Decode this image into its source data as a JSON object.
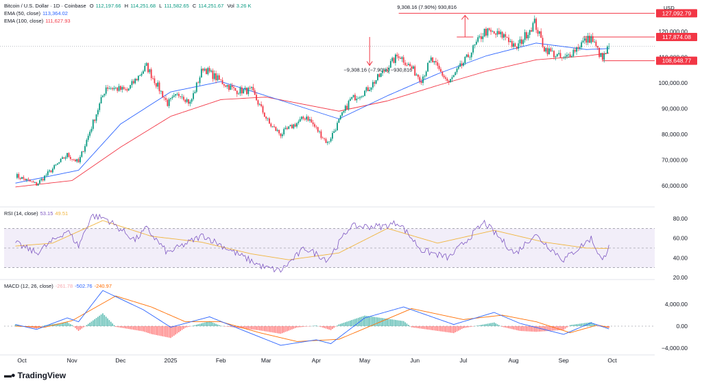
{
  "header": {
    "symbol": "Bitcoin / U.S. Dollar · 1D · Coinbase",
    "o_label": "O",
    "o_val": "112,197.66",
    "h_label": "H",
    "h_val": "114,251.68",
    "l_label": "L",
    "l_val": "111,582.65",
    "c_label": "C",
    "c_val": "114,251.67",
    "vol_label": "Vol",
    "vol_val": "3.26 K",
    "ema50_label": "EMA (50, close)",
    "ema50_val": "113,364.02",
    "ema100_label": "EMA (100, close)",
    "ema100_val": "111,627.93",
    "rsi_label": "RSI (14, close)",
    "rsi_val": "53.15",
    "rsi_ma_val": "49.51",
    "macd_label": "MACD (12, 26, close)",
    "macd_hist_val": "-261.78",
    "macd_val": "-502.76",
    "macd_signal_val": "-240.97",
    "currency": "USD"
  },
  "branding": {
    "name": "TradingView"
  },
  "colors": {
    "up": "#089981",
    "down": "#f23645",
    "ema50": "#2962ff",
    "ema100": "#f23645",
    "rsi": "#7e57c2",
    "rsi_ma": "#f0b43c",
    "macd": "#2962ff",
    "signal": "#ff6d00"
  },
  "annotations": {
    "measure_top": "9,308.16 (7.90%) 930,816",
    "measure_mid": "−9,308.16 (−7.90%) −930,816",
    "level_high": "127,092.79",
    "level_res": "117,874.08",
    "level_sup": "108,648.77"
  },
  "chart_data": [
    {
      "type": "candlestick",
      "title": "Bitcoin / U.S. Dollar · 1D · Coinbase",
      "ylabel": "USD",
      "x_ticks": [
        "Oct",
        "Nov",
        "Dec",
        "2025",
        "Feb",
        "Mar",
        "Apr",
        "May",
        "Jun",
        "Jul",
        "Aug",
        "Sep",
        "Oct"
      ],
      "y_ticks": [
        60000,
        70000,
        80000,
        90000,
        100000,
        110000,
        120000
      ],
      "ylim": [
        55000,
        128000
      ],
      "price_keypoints": [
        {
          "date": "2024-09-27",
          "price": 64000
        },
        {
          "date": "2024-10-10",
          "price": 60500
        },
        {
          "date": "2024-10-29",
          "price": 72000
        },
        {
          "date": "2024-11-05",
          "price": 69000
        },
        {
          "date": "2024-11-22",
          "price": 98500
        },
        {
          "date": "2024-12-05",
          "price": 97000
        },
        {
          "date": "2024-12-17",
          "price": 106500
        },
        {
          "date": "2024-12-30",
          "price": 92000
        },
        {
          "date": "2025-01-07",
          "price": 96000
        },
        {
          "date": "2025-01-13",
          "price": 92000
        },
        {
          "date": "2025-01-21",
          "price": 106000
        },
        {
          "date": "2025-01-31",
          "price": 101000
        },
        {
          "date": "2025-02-10",
          "price": 97000
        },
        {
          "date": "2025-02-20",
          "price": 97000
        },
        {
          "date": "2025-03-03",
          "price": 84000
        },
        {
          "date": "2025-03-10",
          "price": 80000
        },
        {
          "date": "2025-03-26",
          "price": 87000
        },
        {
          "date": "2025-04-08",
          "price": 76500
        },
        {
          "date": "2025-04-22",
          "price": 93500
        },
        {
          "date": "2025-05-02",
          "price": 97000
        },
        {
          "date": "2025-05-12",
          "price": 104000
        },
        {
          "date": "2025-05-22",
          "price": 111000
        },
        {
          "date": "2025-06-05",
          "price": 101500
        },
        {
          "date": "2025-06-11",
          "price": 109000
        },
        {
          "date": "2025-06-22",
          "price": 100000
        },
        {
          "date": "2025-07-03",
          "price": 109500
        },
        {
          "date": "2025-07-14",
          "price": 120000
        },
        {
          "date": "2025-07-28",
          "price": 118000
        },
        {
          "date": "2025-08-02",
          "price": 113000
        },
        {
          "date": "2025-08-14",
          "price": 123500
        },
        {
          "date": "2025-08-20",
          "price": 113500
        },
        {
          "date": "2025-09-01",
          "price": 109000
        },
        {
          "date": "2025-09-13",
          "price": 116000
        },
        {
          "date": "2025-09-18",
          "price": 117500
        },
        {
          "date": "2025-09-25",
          "price": 109000
        },
        {
          "date": "2025-09-29",
          "price": 114252
        }
      ],
      "ema50_keypoints": [
        {
          "date": "2024-09-27",
          "price": 61000
        },
        {
          "date": "2024-11-05",
          "price": 66000
        },
        {
          "date": "2024-12-01",
          "price": 84000
        },
        {
          "date": "2025-01-01",
          "price": 96500
        },
        {
          "date": "2025-02-01",
          "price": 100500
        },
        {
          "date": "2025-03-01",
          "price": 95000
        },
        {
          "date": "2025-04-15",
          "price": 86000
        },
        {
          "date": "2025-05-15",
          "price": 95000
        },
        {
          "date": "2025-06-15",
          "price": 103500
        },
        {
          "date": "2025-07-15",
          "price": 110500
        },
        {
          "date": "2025-08-15",
          "price": 115500
        },
        {
          "date": "2025-09-15",
          "price": 113000
        },
        {
          "date": "2025-09-29",
          "price": 113364
        }
      ],
      "ema100_keypoints": [
        {
          "date": "2024-09-27",
          "price": 59500
        },
        {
          "date": "2024-11-01",
          "price": 62000
        },
        {
          "date": "2024-12-01",
          "price": 75000
        },
        {
          "date": "2025-01-01",
          "price": 87000
        },
        {
          "date": "2025-02-01",
          "price": 93500
        },
        {
          "date": "2025-03-01",
          "price": 94500
        },
        {
          "date": "2025-04-15",
          "price": 89000
        },
        {
          "date": "2025-05-15",
          "price": 93000
        },
        {
          "date": "2025-06-15",
          "price": 99000
        },
        {
          "date": "2025-07-15",
          "price": 104500
        },
        {
          "date": "2025-08-15",
          "price": 109000
        },
        {
          "date": "2025-09-15",
          "price": 110500
        },
        {
          "date": "2025-09-29",
          "price": 111628
        }
      ]
    },
    {
      "type": "line",
      "title": "RSI (14, close)",
      "y_ticks": [
        20,
        40,
        60,
        80
      ],
      "ylim": [
        20,
        85
      ],
      "bands": [
        30,
        50,
        70
      ],
      "rsi_keypoints": [
        {
          "date": "2024-09-27",
          "value": 55
        },
        {
          "date": "2024-10-10",
          "value": 45
        },
        {
          "date": "2024-10-29",
          "value": 68
        },
        {
          "date": "2024-11-05",
          "value": 52
        },
        {
          "date": "2024-11-13",
          "value": 83
        },
        {
          "date": "2024-11-22",
          "value": 80
        },
        {
          "date": "2024-12-10",
          "value": 58
        },
        {
          "date": "2024-12-17",
          "value": 70
        },
        {
          "date": "2024-12-30",
          "value": 45
        },
        {
          "date": "2025-01-21",
          "value": 63
        },
        {
          "date": "2025-02-10",
          "value": 45
        },
        {
          "date": "2025-02-28",
          "value": 30
        },
        {
          "date": "2025-03-10",
          "value": 27
        },
        {
          "date": "2025-03-25",
          "value": 50
        },
        {
          "date": "2025-04-08",
          "value": 38
        },
        {
          "date": "2025-04-22",
          "value": 72
        },
        {
          "date": "2025-05-12",
          "value": 72
        },
        {
          "date": "2025-05-22",
          "value": 76
        },
        {
          "date": "2025-06-05",
          "value": 48
        },
        {
          "date": "2025-06-22",
          "value": 40
        },
        {
          "date": "2025-07-14",
          "value": 76
        },
        {
          "date": "2025-08-02",
          "value": 44
        },
        {
          "date": "2025-08-14",
          "value": 64
        },
        {
          "date": "2025-09-01",
          "value": 38
        },
        {
          "date": "2025-09-18",
          "value": 60
        },
        {
          "date": "2025-09-25",
          "value": 36
        },
        {
          "date": "2025-09-29",
          "value": 53.15
        }
      ],
      "rsi_ma_keypoints": [
        {
          "date": "2024-09-27",
          "value": 52
        },
        {
          "date": "2024-10-20",
          "value": 55
        },
        {
          "date": "2024-11-20",
          "value": 78
        },
        {
          "date": "2024-12-20",
          "value": 62
        },
        {
          "date": "2025-01-20",
          "value": 56
        },
        {
          "date": "2025-02-20",
          "value": 44
        },
        {
          "date": "2025-03-15",
          "value": 38
        },
        {
          "date": "2025-04-15",
          "value": 45
        },
        {
          "date": "2025-05-15",
          "value": 70
        },
        {
          "date": "2025-06-15",
          "value": 55
        },
        {
          "date": "2025-07-20",
          "value": 68
        },
        {
          "date": "2025-08-20",
          "value": 56
        },
        {
          "date": "2025-09-15",
          "value": 50
        },
        {
          "date": "2025-09-29",
          "value": 49.51
        }
      ]
    },
    {
      "type": "line",
      "title": "MACD (12, 26, close)",
      "y_ticks": [
        -4000,
        0,
        4000
      ],
      "ylim": [
        -4500,
        6500
      ],
      "macd_keypoints": [
        {
          "date": "2024-09-27",
          "value": 300
        },
        {
          "date": "2024-10-10",
          "value": -600
        },
        {
          "date": "2024-10-29",
          "value": 1500
        },
        {
          "date": "2024-11-05",
          "value": 800
        },
        {
          "date": "2024-11-20",
          "value": 6500
        },
        {
          "date": "2024-12-15",
          "value": 3000
        },
        {
          "date": "2025-01-01",
          "value": -200
        },
        {
          "date": "2025-01-25",
          "value": 1700
        },
        {
          "date": "2025-02-15",
          "value": -800
        },
        {
          "date": "2025-03-10",
          "value": -3500
        },
        {
          "date": "2025-04-01",
          "value": -2500
        },
        {
          "date": "2025-04-10",
          "value": -3200
        },
        {
          "date": "2025-05-01",
          "value": 1500
        },
        {
          "date": "2025-05-25",
          "value": 3500
        },
        {
          "date": "2025-06-25",
          "value": 300
        },
        {
          "date": "2025-07-20",
          "value": 2500
        },
        {
          "date": "2025-08-05",
          "value": 500
        },
        {
          "date": "2025-09-01",
          "value": -1500
        },
        {
          "date": "2025-09-18",
          "value": 600
        },
        {
          "date": "2025-09-29",
          "value": -503
        }
      ],
      "signal_keypoints": [
        {
          "date": "2024-09-27",
          "value": 0
        },
        {
          "date": "2024-10-15",
          "value": -200
        },
        {
          "date": "2024-11-01",
          "value": 1000
        },
        {
          "date": "2024-11-28",
          "value": 5500
        },
        {
          "date": "2024-12-20",
          "value": 3500
        },
        {
          "date": "2025-01-10",
          "value": 800
        },
        {
          "date": "2025-02-01",
          "value": 800
        },
        {
          "date": "2025-02-25",
          "value": -1200
        },
        {
          "date": "2025-03-20",
          "value": -2800
        },
        {
          "date": "2025-04-15",
          "value": -2400
        },
        {
          "date": "2025-05-10",
          "value": 700
        },
        {
          "date": "2025-05-30",
          "value": 3200
        },
        {
          "date": "2025-07-01",
          "value": 1200
        },
        {
          "date": "2025-07-25",
          "value": 2000
        },
        {
          "date": "2025-08-15",
          "value": 800
        },
        {
          "date": "2025-09-05",
          "value": -1200
        },
        {
          "date": "2025-09-22",
          "value": 200
        },
        {
          "date": "2025-09-29",
          "value": -241
        }
      ]
    }
  ]
}
